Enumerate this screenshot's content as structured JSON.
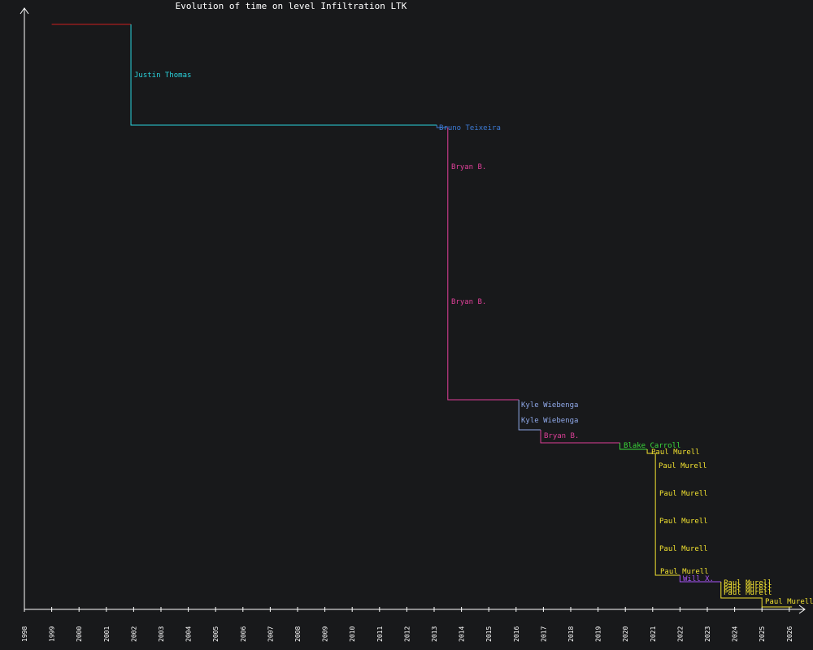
{
  "chart_data": {
    "type": "line",
    "title": "Evolution of time on level Infiltration LTK",
    "xlabel": "",
    "ylabel": "",
    "x_ticks": [
      "1998",
      "1999",
      "2000",
      "2001",
      "2002",
      "2003",
      "2004",
      "2005",
      "2006",
      "2007",
      "2008",
      "2009",
      "2010",
      "2011",
      "2012",
      "2013",
      "2014",
      "2015",
      "2016",
      "2017",
      "2018",
      "2019",
      "2020",
      "2021",
      "2022",
      "2023",
      "2024",
      "2025",
      "2026"
    ],
    "xlim": [
      1998,
      2027.6
    ],
    "y_axis_labels_shown": false,
    "record_holders_rendered": [
      "Justin Thomas",
      "Bruno Teixeira",
      "Bryan B.",
      "Bryan B.",
      "Kyle Wiebenga",
      "Kyle Wiebenga",
      "Bryan B.",
      "Blake Carroll",
      "Paul Murell",
      "Paul Murell",
      "Paul Murell",
      "Paul Murell",
      "Paul Murell",
      "Paul Murell",
      "Will X.",
      "Paul Murell",
      "Paul Murell",
      "Paul Murell",
      "Paul Murell",
      "Paul Murell"
    ],
    "series": [
      {
        "name": "",
        "color": "#cc1f1f",
        "x": [
          1999.0,
          2001.9
        ],
        "y": [
          720,
          720
        ]
      },
      {
        "name": "Justin Thomas",
        "color": "#2ad4de",
        "x": [
          2001.9,
          2001.9,
          2013.1
        ],
        "y": [
          720,
          596,
          596
        ]
      },
      {
        "name": "Bruno Teixeira",
        "color": "#3d7bd6",
        "x": [
          2013.1,
          2013.1,
          2013.5
        ],
        "y": [
          596,
          593,
          593
        ]
      },
      {
        "name": "Bryan B.",
        "color": "#e0409a",
        "x": [
          2013.5,
          2013.5,
          2016.1
        ],
        "y": [
          593,
          258,
          258
        ]
      },
      {
        "name": "Kyle Wiebenga",
        "color": "#8fa8e8",
        "x": [
          2016.1,
          2016.1,
          2016.9
        ],
        "y": [
          258,
          221,
          221
        ]
      },
      {
        "name": "Bryan B.",
        "color": "#e0409a",
        "x": [
          2016.9,
          2016.9,
          2019.8
        ],
        "y": [
          221,
          205,
          205
        ]
      },
      {
        "name": "Blake Carroll",
        "color": "#3ad93a",
        "x": [
          2019.8,
          2019.8,
          2020.8
        ],
        "y": [
          205,
          197,
          197
        ]
      },
      {
        "name": "Paul Murell",
        "color": "#f0e030",
        "x": [
          2020.8,
          2020.8,
          2021.1,
          2021.1,
          2022.0
        ],
        "y": [
          197,
          192,
          192,
          42,
          42
        ]
      },
      {
        "name": "Will X.",
        "color": "#a855f7",
        "x": [
          2022.0,
          2022.0,
          2023.5
        ],
        "y": [
          42,
          34,
          34
        ]
      },
      {
        "name": "Paul Murell",
        "color": "#f0e030",
        "x": [
          2023.5,
          2023.5,
          2025.0,
          2025.0,
          2026.1
        ],
        "y": [
          34,
          14,
          14,
          3,
          3
        ]
      }
    ]
  }
}
